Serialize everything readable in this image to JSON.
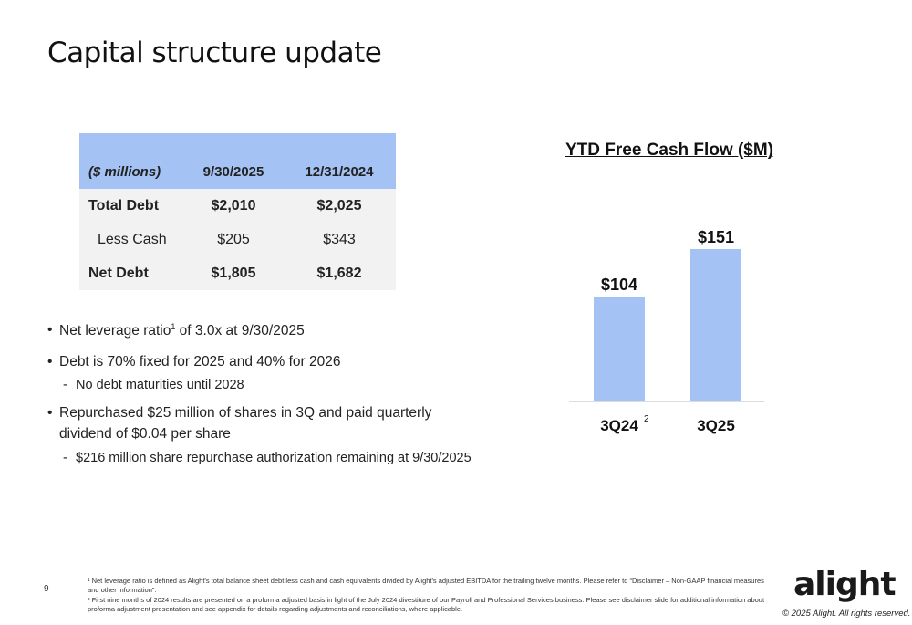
{
  "page": {
    "title": "Capital structure update",
    "page_number": "9"
  },
  "table": {
    "headers": [
      "($ millions)",
      "9/30/2025",
      "12/31/2024"
    ],
    "rows": [
      {
        "label": "Total Debt",
        "v1": "$2,010",
        "v2": "$2,025",
        "bold": true
      },
      {
        "label": "Less Cash",
        "v1": "$205",
        "v2": "$343",
        "bold": false
      },
      {
        "label": "Net Debt",
        "v1": "$1,805",
        "v2": "$1,682",
        "bold": true
      }
    ]
  },
  "bullets": {
    "b1_pre": "Net leverage ratio",
    "b1_sup": "1",
    "b1_post": " of 3.0x at 9/30/2025",
    "b2": "Debt is 70% fixed for 2025 and 40% for 2026",
    "b2_sub": "No debt maturities until 2028",
    "b3_line1": "Repurchased $25 million of shares in 3Q and paid quarterly",
    "b3_line2": "dividend of $0.04 per share",
    "b3_sub": "$216 million share repurchase authorization remaining at 9/30/2025"
  },
  "chart_data": {
    "type": "bar",
    "title": "YTD Free Cash Flow ($M)",
    "categories": [
      "3Q24",
      "3Q25"
    ],
    "category_superscripts": [
      "2",
      ""
    ],
    "values": [
      104,
      151
    ],
    "data_labels": [
      "$104",
      "$151"
    ],
    "color": "#a4c2f4",
    "ylim": [
      0,
      151
    ],
    "grid": false
  },
  "footnotes": {
    "note1": "¹ Net leverage ratio is defined as Alight's total balance sheet debt less cash and cash equivalents divided by Alight's adjusted EBITDA for the trailing twelve months. Please refer to “Disclaimer – Non-GAAP financial measures and other information”.",
    "note2": "² First nine months of 2024 results are presented on a proforma adjusted basis in light of the July 2024 divestiture of our Payroll and Professional Services business. Please see disclaimer slide for additional information about proforma adjustment presentation and see appendix for details regarding adjustments and reconciliations, where applicable."
  },
  "brand": {
    "logo_text": "alight",
    "copyright": "© 2025 Alight. All rights reserved."
  }
}
